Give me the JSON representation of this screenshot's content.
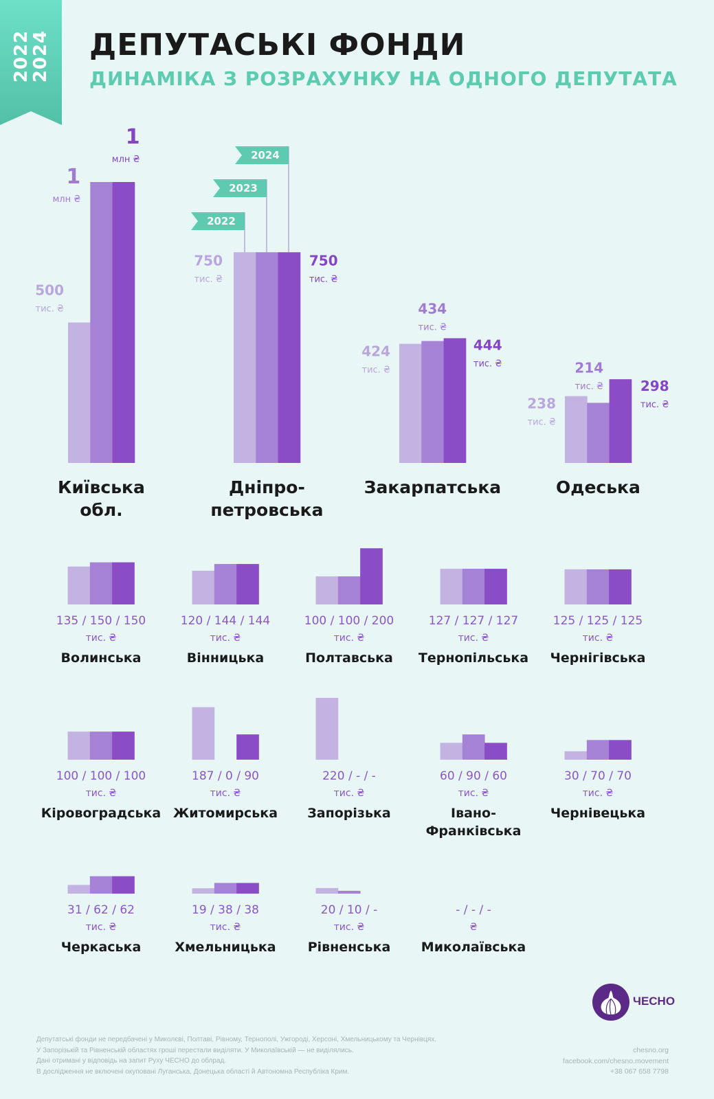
{
  "ribbon": {
    "years": "2022 2024",
    "year_start": "2022",
    "year_end": "2024"
  },
  "header": {
    "title": "ДЕПУТАСЬКІ ФОНДИ",
    "subtitle": "ДИНАМІКА З РОЗРАХУНКУ НА ОДНОГО ДЕПУТАТА"
  },
  "colors": {
    "y2022": "#c3b3e2",
    "y2023": "#a682d6",
    "y2024": "#8a4dc6",
    "accent": "#5ccbb0",
    "brand": "#5b2a86"
  },
  "chart_data": {
    "type": "bar",
    "title": "ДЕПУТАСЬКІ ФОНДИ",
    "subtitle": "ДИНАМІКА З РОЗРАХУНКУ НА ОДНОГО ДЕПУТАТА",
    "unit": "тис. ₴",
    "series_names": [
      "2022",
      "2023",
      "2024"
    ],
    "legend": [
      "2022",
      "2023",
      "2024"
    ],
    "featured": [
      {
        "name": [
          "Київська",
          "обл."
        ],
        "values": [
          500,
          1000,
          1000
        ],
        "labels": [
          {
            "num": "500",
            "unit": "тис. ₴"
          },
          {
            "num": "1",
            "unit": "млн ₴"
          },
          {
            "num": "1",
            "unit": "млн ₴"
          }
        ]
      },
      {
        "name": [
          "Дніпро-",
          "петровська"
        ],
        "values": [
          750,
          750,
          750
        ],
        "labels": [
          {
            "num": "750",
            "unit": "тис. ₴"
          },
          null,
          {
            "num": "750",
            "unit": "тис. ₴"
          }
        ]
      },
      {
        "name": [
          "Закарпатська"
        ],
        "values": [
          424,
          434,
          444
        ],
        "labels": [
          {
            "num": "424",
            "unit": "тис. ₴"
          },
          {
            "num": "434",
            "unit": "тис. ₴"
          },
          {
            "num": "444",
            "unit": "тис. ₴"
          }
        ]
      },
      {
        "name": [
          "Одеська"
        ],
        "values": [
          238,
          214,
          298
        ],
        "labels": [
          {
            "num": "238",
            "unit": "тис. ₴"
          },
          {
            "num": "214",
            "unit": "тис. ₴"
          },
          {
            "num": "298",
            "unit": "тис. ₴"
          }
        ]
      }
    ],
    "regions": [
      {
        "name": [
          "Волинська"
        ],
        "values": [
          135,
          150,
          150
        ],
        "text": "135 / 150 / 150",
        "unit": "тис. ₴"
      },
      {
        "name": [
          "Вінницька"
        ],
        "values": [
          120,
          144,
          144
        ],
        "text": "120 / 144 / 144",
        "unit": "тис. ₴"
      },
      {
        "name": [
          "Полтавська"
        ],
        "values": [
          100,
          100,
          200
        ],
        "text": "100 / 100 / 200",
        "unit": "тис. ₴"
      },
      {
        "name": [
          "Тернопільська"
        ],
        "values": [
          127,
          127,
          127
        ],
        "text": "127 / 127 / 127",
        "unit": "тис. ₴"
      },
      {
        "name": [
          "Чернігівська"
        ],
        "values": [
          125,
          125,
          125
        ],
        "text": "125 / 125 / 125",
        "unit": "тис. ₴"
      },
      {
        "name": [
          "Кіровоградська"
        ],
        "values": [
          100,
          100,
          100
        ],
        "text": "100 / 100 / 100",
        "unit": "тис. ₴"
      },
      {
        "name": [
          "Житомирська"
        ],
        "values": [
          187,
          0,
          90
        ],
        "text": "187 / 0 / 90",
        "unit": "тис. ₴"
      },
      {
        "name": [
          "Запорізька"
        ],
        "values": [
          220,
          null,
          null
        ],
        "text": "220 / - / -",
        "unit": "тис. ₴"
      },
      {
        "name": [
          "Івано-",
          "Франківська"
        ],
        "values": [
          60,
          90,
          60
        ],
        "text": "60 / 90 / 60",
        "unit": "тис. ₴"
      },
      {
        "name": [
          "Чернівецька"
        ],
        "values": [
          30,
          70,
          70
        ],
        "text": "30 / 70 / 70",
        "unit": "тис. ₴"
      },
      {
        "name": [
          "Черкаська"
        ],
        "values": [
          31,
          62,
          62
        ],
        "text": "31 / 62 / 62",
        "unit": "тис. ₴"
      },
      {
        "name": [
          "Хмельницька"
        ],
        "values": [
          19,
          38,
          38
        ],
        "text": "19 / 38 / 38",
        "unit": "тис. ₴"
      },
      {
        "name": [
          "Рівненська"
        ],
        "values": [
          20,
          10,
          null
        ],
        "text": "20 / 10 / -",
        "unit": "тис. ₴"
      },
      {
        "name": [
          "Миколаївська"
        ],
        "values": [
          null,
          null,
          null
        ],
        "text": "- / - / -",
        "unit": "₴"
      }
    ]
  },
  "footer": {
    "notes": [
      "Депутатські фонди не передбачені у Миколєві, Полтаві, Рівному, Тернополі, Ужгороді, Херсоні, Хмельницькому та Чернівцях.",
      "У Запорізькій та Рівненській областях гроші перестали виділяти. У Миколаївській — не виділялись.",
      "Дані отримані у відповідь на запит Руху ЧЕСНО до облрад.",
      "В дослідження не включені окуповані Луганська, Донецька області й Автономна Республіка Крим."
    ],
    "logo_text": "ЧЕСНО",
    "website": "chesno.org",
    "facebook": "facebook.com/chesno.movement",
    "phone": "+38 067 658 7798"
  }
}
